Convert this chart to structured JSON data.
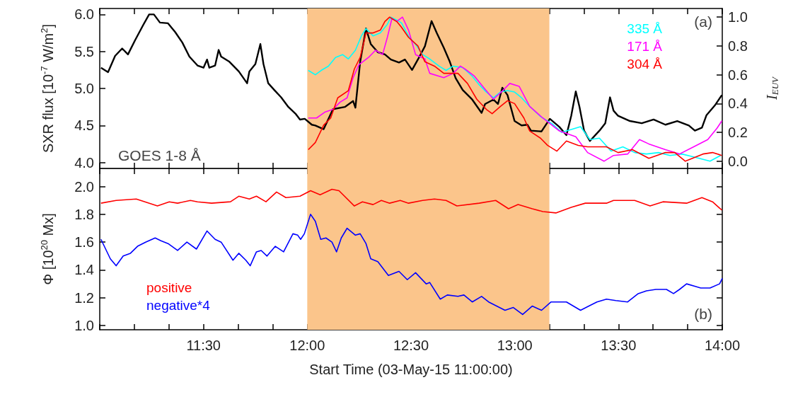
{
  "chart_data": [
    {
      "type": "line",
      "ylabel": "SXR flux [10$^{-7}$ W/m$^{2}$]",
      "y2label": "I$_{EUV}$",
      "marker": "none",
      "legend": "top right",
      "tick_labels": "y",
      "annotations": [
        "(a)",
        "GOES 1-8 Å"
      ],
      "xlim": [
        11,
        14
      ],
      "xticks": [
        {
          "value": 11,
          "label": null
        },
        {
          "value": 11.1667,
          "label": null
        },
        {
          "value": 11.3333,
          "label": null
        },
        {
          "value": 11.5,
          "label": null
        },
        {
          "value": 11.6667,
          "label": null
        },
        {
          "value": 11.8333,
          "label": null
        },
        {
          "value": 12,
          "label": null
        },
        {
          "value": 12.1667,
          "label": null
        },
        {
          "value": 12.3333,
          "label": null
        },
        {
          "value": 12.5,
          "label": null
        },
        {
          "value": 12.6667,
          "label": null
        },
        {
          "value": 12.8333,
          "label": null
        },
        {
          "value": 13,
          "label": null
        },
        {
          "value": 13.1667,
          "label": null
        },
        {
          "value": 13.3333,
          "label": null
        },
        {
          "value": 13.5,
          "label": null
        },
        {
          "value": 13.6667,
          "label": null
        },
        {
          "value": 13.8333,
          "label": null
        },
        {
          "value": 14,
          "label": null
        }
      ],
      "ylim": [
        3.92,
        6.08
      ],
      "yticks": [
        {
          "value": 4,
          "label": "4.0"
        },
        4.5,
        {
          "value": 5,
          "label": "5.0"
        },
        5.5,
        {
          "value": 6,
          "label": "6.0"
        }
      ],
      "y2lim": [
        -0.05,
        1.06
      ],
      "y2ticks": [
        {
          "value": 0,
          "label": "0.0"
        },
        0.2,
        0.4,
        0.6,
        0.8,
        {
          "value": 1,
          "label": "1.0"
        }
      ],
      "bands": [
        {
          "axis": "x",
          "from": 12,
          "to": 13.1667,
          "color": "#fbc58b"
        }
      ],
      "series": [
        {
          "color": "#000000",
          "x": [
            11.006,
            11.04,
            11.074,
            11.108,
            11.136,
            11.17,
            11.21,
            11.238,
            11.261,
            11.29,
            11.329,
            11.364,
            11.398,
            11.432,
            11.471,
            11.5,
            11.517,
            11.528,
            11.556,
            11.573,
            11.585,
            11.625,
            11.67,
            11.71,
            11.721,
            11.75,
            11.774,
            11.789,
            11.812,
            11.841,
            11.874,
            11.909,
            11.943,
            11.965,
            11.988,
            12.022,
            12.039,
            12.079,
            12.124,
            12.181,
            12.221,
            12.232,
            12.255,
            12.283,
            12.306,
            12.34,
            12.374,
            12.403,
            12.442,
            12.471,
            12.505,
            12.533,
            12.567,
            12.599,
            12.624,
            12.658,
            12.687,
            12.715,
            12.749,
            12.795,
            12.84,
            12.857,
            12.897,
            12.919,
            12.94,
            12.965,
            12.999,
            13.033,
            13.061,
            13.078,
            13.129,
            13.169,
            13.215,
            13.249,
            13.272,
            13.294,
            13.312,
            13.334,
            13.362,
            13.408,
            13.436,
            13.459,
            13.476,
            13.498,
            13.555,
            13.612,
            13.669,
            13.726,
            13.783,
            13.839,
            13.868,
            13.902,
            13.924,
            13.964,
            13.998
          ],
          "values": [
            5.28,
            5.22,
            5.44,
            5.54,
            5.46,
            5.65,
            5.86,
            6.0,
            6.0,
            5.89,
            5.88,
            5.76,
            5.62,
            5.43,
            5.31,
            5.28,
            5.39,
            5.28,
            5.31,
            5.52,
            5.43,
            5.36,
            5.23,
            5.07,
            5.23,
            5.33,
            5.6,
            5.33,
            5.07,
            4.98,
            4.88,
            4.75,
            4.66,
            4.58,
            4.59,
            4.51,
            4.5,
            4.45,
            4.72,
            4.75,
            4.83,
            4.74,
            5.36,
            5.81,
            5.6,
            5.49,
            5.46,
            5.39,
            5.35,
            5.39,
            5.25,
            5.39,
            5.57,
            5.91,
            5.75,
            5.55,
            5.36,
            5.14,
            4.98,
            4.85,
            4.67,
            4.79,
            4.85,
            4.79,
            5.01,
            4.91,
            4.56,
            4.5,
            4.51,
            4.43,
            4.42,
            4.59,
            4.48,
            4.37,
            4.63,
            4.96,
            4.75,
            4.43,
            4.29,
            4.43,
            4.53,
            4.88,
            4.7,
            4.63,
            4.56,
            4.53,
            4.58,
            4.51,
            4.56,
            4.5,
            4.43,
            4.47,
            4.64,
            4.77,
            4.91
          ]
        },
        {
          "name": "335 Å",
          "color": "#00ffff",
          "axis": "y2",
          "x": [
            12.005,
            12.039,
            12.067,
            12.102,
            12.136,
            12.17,
            12.198,
            12.232,
            12.261,
            12.283,
            12.317,
            12.352,
            12.386,
            12.403,
            12.431,
            12.454,
            12.488,
            12.522,
            12.556,
            12.59,
            12.635,
            12.669,
            12.703,
            12.749,
            12.795,
            12.829,
            12.863,
            12.897,
            12.931,
            12.965,
            12.999,
            13.033,
            13.072,
            13.124,
            13.18,
            13.226,
            13.272,
            13.317,
            13.362,
            13.408,
            13.464,
            13.521,
            13.578,
            13.635,
            13.692,
            13.748,
            13.805,
            13.862,
            13.941,
            13.992
          ],
          "values": [
            0.63,
            0.6,
            0.63,
            0.66,
            0.72,
            0.74,
            0.71,
            0.77,
            0.87,
            0.92,
            0.87,
            0.89,
            0.95,
            1.0,
            0.98,
            0.96,
            0.87,
            0.81,
            0.74,
            0.71,
            0.66,
            0.63,
            0.66,
            0.65,
            0.59,
            0.53,
            0.48,
            0.44,
            0.48,
            0.49,
            0.48,
            0.44,
            0.38,
            0.31,
            0.26,
            0.2,
            0.22,
            0.24,
            0.15,
            0.16,
            0.07,
            0.1,
            0.06,
            0.05,
            0.06,
            0.04,
            0.05,
            0.03,
            0.0,
            0.04
          ]
        },
        {
          "name": "171 Å",
          "color": "#ff00ff",
          "axis": "y2",
          "x": [
            12.005,
            12.045,
            12.084,
            12.124,
            12.158,
            12.192,
            12.221,
            12.249,
            12.295,
            12.329,
            12.363,
            12.386,
            12.408,
            12.431,
            12.459,
            12.488,
            12.522,
            12.567,
            12.59,
            12.658,
            12.703,
            12.738,
            12.76,
            12.806,
            12.851,
            12.897,
            12.942,
            12.976,
            13.021,
            13.072,
            13.135,
            13.215,
            13.294,
            13.351,
            13.43,
            13.476,
            13.544,
            13.601,
            13.646,
            13.726,
            13.794,
            13.862,
            13.93,
            13.975,
            13.998
          ],
          "values": [
            0.3,
            0.3,
            0.34,
            0.36,
            0.41,
            0.44,
            0.58,
            0.67,
            0.72,
            0.77,
            0.74,
            0.86,
            0.99,
            0.97,
            1.0,
            0.91,
            0.74,
            0.71,
            0.61,
            0.58,
            0.61,
            0.66,
            0.64,
            0.59,
            0.51,
            0.43,
            0.49,
            0.54,
            0.52,
            0.38,
            0.3,
            0.21,
            0.17,
            0.06,
            0.0,
            0.04,
            0.05,
            0.15,
            0.12,
            0.08,
            0.05,
            0.1,
            0.15,
            0.23,
            0.28
          ]
        },
        {
          "name": "304 Å",
          "color": "#ff0000",
          "axis": "y2",
          "x": [
            12.005,
            12.039,
            12.079,
            12.113,
            12.147,
            12.198,
            12.227,
            12.255,
            12.283,
            12.317,
            12.352,
            12.374,
            12.397,
            12.431,
            12.454,
            12.488,
            12.533,
            12.567,
            12.613,
            12.658,
            12.726,
            12.772,
            12.817,
            12.863,
            12.891,
            12.931,
            12.965,
            12.999,
            13.044,
            13.072,
            13.124,
            13.158,
            13.203,
            13.249,
            13.306,
            13.351,
            13.442,
            13.498,
            13.567,
            13.646,
            13.726,
            13.771,
            13.822,
            13.907,
            13.953,
            13.998
          ],
          "values": [
            0.08,
            0.13,
            0.25,
            0.3,
            0.44,
            0.49,
            0.64,
            0.72,
            0.89,
            0.89,
            0.91,
            0.97,
            1.0,
            0.97,
            0.93,
            0.86,
            0.8,
            0.69,
            0.66,
            0.61,
            0.61,
            0.54,
            0.43,
            0.36,
            0.33,
            0.38,
            0.42,
            0.4,
            0.3,
            0.21,
            0.16,
            0.11,
            0.07,
            0.14,
            0.11,
            0.1,
            0.1,
            0.06,
            0.08,
            0.02,
            0.06,
            0.06,
            0.0,
            0.05,
            0.06,
            0.04
          ]
        }
      ]
    },
    {
      "type": "line",
      "xlabel": "Start Time (03-May-15 11:00:00)",
      "ylabel": "Φ [10$^{20}$ Mx]",
      "marker": "none",
      "legend": "bottom left",
      "annotations": [
        "(b)"
      ],
      "xlim": [
        11,
        14
      ],
      "xticks": [
        {
          "value": 11,
          "label": null
        },
        {
          "value": 11.1667,
          "label": null
        },
        {
          "value": 11.3333,
          "label": null
        },
        {
          "value": 11.5,
          "label": "11:30"
        },
        {
          "value": 11.6667,
          "label": null
        },
        {
          "value": 11.8333,
          "label": null
        },
        {
          "value": 12,
          "label": "12:00"
        },
        {
          "value": 12.1667,
          "label": null
        },
        {
          "value": 12.3333,
          "label": null
        },
        {
          "value": 12.5,
          "label": "12:30"
        },
        {
          "value": 12.6667,
          "label": null
        },
        {
          "value": 12.8333,
          "label": null
        },
        {
          "value": 13,
          "label": "13:00"
        },
        {
          "value": 13.1667,
          "label": null
        },
        {
          "value": 13.3333,
          "label": null
        },
        {
          "value": 13.5,
          "label": "13:30"
        },
        {
          "value": 13.6667,
          "label": null
        },
        {
          "value": 13.8333,
          "label": null
        },
        {
          "value": 14,
          "label": "14:00"
        }
      ],
      "ylim": [
        0.97,
        2.13
      ],
      "yticks": [
        {
          "value": 1,
          "label": "1.0"
        },
        1.2,
        1.4,
        1.6,
        1.8,
        {
          "value": 2,
          "label": "2.0"
        }
      ],
      "bands": [
        {
          "axis": "x",
          "from": 12,
          "to": 13.1667,
          "color": "#fbc58b"
        }
      ],
      "series": [
        {
          "name": "positive",
          "color": "#ff0000",
          "x": [
            11.006,
            11.079,
            11.176,
            11.278,
            11.335,
            11.375,
            11.437,
            11.471,
            11.539,
            11.63,
            11.67,
            11.721,
            11.755,
            11.801,
            11.852,
            11.897,
            11.965,
            12.016,
            12.062,
            12.119,
            12.153,
            12.227,
            12.266,
            12.317,
            12.357,
            12.397,
            12.448,
            12.488,
            12.556,
            12.613,
            12.669,
            12.721,
            12.829,
            12.908,
            12.97,
            13.016,
            13.084,
            13.135,
            13.198,
            13.272,
            13.34,
            13.442,
            13.476,
            13.578,
            13.652,
            13.714,
            13.828,
            13.902,
            13.953,
            13.998
          ],
          "values": [
            1.88,
            1.9,
            1.91,
            1.86,
            1.89,
            1.88,
            1.9,
            1.89,
            1.88,
            1.89,
            1.93,
            1.91,
            1.93,
            1.89,
            1.96,
            1.92,
            1.93,
            1.97,
            1.94,
            1.98,
            1.97,
            1.86,
            1.89,
            1.87,
            1.9,
            1.88,
            1.9,
            1.88,
            1.9,
            1.91,
            1.9,
            1.86,
            1.88,
            1.9,
            1.84,
            1.87,
            1.84,
            1.82,
            1.81,
            1.85,
            1.88,
            1.88,
            1.9,
            1.9,
            1.86,
            1.89,
            1.88,
            1.92,
            1.89,
            1.83
          ]
        },
        {
          "name": "negative*4",
          "color": "#0000ff",
          "x": [
            11.006,
            11.051,
            11.079,
            11.113,
            11.148,
            11.182,
            11.221,
            11.267,
            11.295,
            11.329,
            11.375,
            11.42,
            11.466,
            11.517,
            11.556,
            11.585,
            11.642,
            11.67,
            11.704,
            11.725,
            11.755,
            11.778,
            11.806,
            11.846,
            11.886,
            11.931,
            11.954,
            11.968,
            11.986,
            12.016,
            12.039,
            12.065,
            12.09,
            12.119,
            12.141,
            12.164,
            12.192,
            12.232,
            12.255,
            12.283,
            12.306,
            12.34,
            12.391,
            12.442,
            12.482,
            12.522,
            12.573,
            12.59,
            12.641,
            12.675,
            12.726,
            12.755,
            12.795,
            12.84,
            12.874,
            12.953,
            12.993,
            13.038,
            13.084,
            13.129,
            13.175,
            13.249,
            13.317,
            13.357,
            13.396,
            13.442,
            13.487,
            13.544,
            13.595,
            13.635,
            13.68,
            13.731,
            13.765,
            13.794,
            13.828,
            13.873,
            13.896,
            13.941,
            13.987,
            14.0
          ],
          "values": [
            1.62,
            1.48,
            1.43,
            1.5,
            1.52,
            1.57,
            1.6,
            1.63,
            1.61,
            1.59,
            1.54,
            1.6,
            1.55,
            1.68,
            1.62,
            1.6,
            1.47,
            1.52,
            1.47,
            1.43,
            1.53,
            1.54,
            1.5,
            1.57,
            1.53,
            1.66,
            1.65,
            1.62,
            1.66,
            1.8,
            1.75,
            1.62,
            1.63,
            1.6,
            1.53,
            1.63,
            1.7,
            1.65,
            1.66,
            1.59,
            1.48,
            1.46,
            1.36,
            1.39,
            1.33,
            1.38,
            1.3,
            1.31,
            1.19,
            1.22,
            1.21,
            1.22,
            1.17,
            1.21,
            1.17,
            1.11,
            1.13,
            1.08,
            1.14,
            1.11,
            1.17,
            1.17,
            1.11,
            1.14,
            1.17,
            1.19,
            1.18,
            1.17,
            1.23,
            1.25,
            1.26,
            1.26,
            1.23,
            1.26,
            1.3,
            1.28,
            1.27,
            1.27,
            1.3,
            1.34
          ]
        }
      ]
    }
  ]
}
